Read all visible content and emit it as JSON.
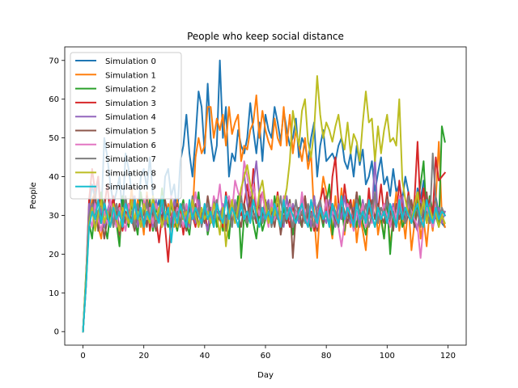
{
  "chart_data": {
    "type": "line",
    "title": "People who keep social distance",
    "xlabel": "Day",
    "ylabel": "People",
    "xlim": [
      -6,
      126
    ],
    "ylim": [
      -3.5,
      73.5
    ],
    "xticks": [
      0,
      20,
      40,
      60,
      80,
      100,
      120
    ],
    "yticks": [
      0,
      10,
      20,
      30,
      40,
      50,
      60,
      70
    ],
    "grid": false,
    "legend_position": "top-left",
    "x_start": 0,
    "x_step": 1,
    "series": [
      {
        "name": "Simulation 0",
        "color": "#1f77b4",
        "values": [
          0,
          12,
          32,
          38,
          34,
          40,
          30,
          50,
          45,
          38,
          33,
          36,
          40,
          30,
          46,
          42,
          36,
          33,
          28,
          40,
          42,
          37,
          45,
          35,
          31,
          34,
          28,
          40,
          42,
          35,
          38,
          30,
          44,
          48,
          56,
          46,
          40,
          50,
          62,
          58,
          46,
          64,
          50,
          44,
          48,
          70,
          50,
          58,
          40,
          46,
          44,
          52,
          48,
          46,
          50,
          59,
          52,
          46,
          54,
          44,
          56,
          52,
          50,
          58,
          54,
          49,
          57,
          52,
          48,
          50,
          55,
          45,
          50,
          48,
          44,
          50,
          54,
          40,
          48,
          52,
          44,
          45,
          46,
          44,
          48,
          50,
          44,
          42,
          46,
          40,
          48,
          43,
          47,
          38,
          40,
          44,
          36,
          41,
          45,
          38,
          40,
          35,
          42,
          36,
          38,
          34,
          40,
          36,
          31,
          30,
          37,
          34,
          39,
          32,
          34,
          29,
          35,
          30,
          28,
          27
        ]
      },
      {
        "name": "Simulation 1",
        "color": "#ff7f0e",
        "values": [
          0,
          13,
          30,
          34,
          36,
          27,
          24,
          33,
          29,
          31,
          27,
          33,
          24,
          31,
          28,
          30,
          37,
          28,
          34,
          31,
          25,
          36,
          29,
          33,
          27,
          31,
          35,
          28,
          33,
          30,
          27,
          34,
          29,
          31,
          28,
          33,
          30,
          45,
          50,
          46,
          48,
          58,
          58,
          50,
          55,
          52,
          56,
          48,
          58,
          51,
          54,
          56,
          44,
          48,
          47,
          52,
          54,
          61,
          50,
          57,
          52,
          49,
          47,
          55,
          50,
          48,
          58,
          48,
          56,
          46,
          52,
          48,
          44,
          50,
          42,
          46,
          30,
          19,
          33,
          40,
          36,
          29,
          24,
          35,
          28,
          37,
          25,
          32,
          27,
          34,
          23,
          30,
          26,
          21,
          32,
          28,
          35,
          25,
          30,
          24,
          33,
          22,
          29,
          36,
          26,
          31,
          24,
          33,
          21,
          28,
          35,
          24,
          29,
          22,
          31,
          26,
          34,
          49,
          30,
          27
        ]
      },
      {
        "name": "Simulation 2",
        "color": "#2ca02c",
        "values": [
          0,
          15,
          28,
          24,
          33,
          30,
          36,
          28,
          24,
          31,
          33,
          28,
          22,
          35,
          30,
          27,
          33,
          29,
          25,
          36,
          31,
          28,
          34,
          26,
          32,
          29,
          37,
          30,
          27,
          33,
          29,
          26,
          31,
          34,
          28,
          25,
          33,
          30,
          36,
          28,
          32,
          25,
          29,
          34,
          27,
          31,
          26,
          30,
          24,
          33,
          29,
          35,
          19,
          30,
          27,
          33,
          28,
          24,
          31,
          26,
          29,
          33,
          27,
          35,
          30,
          26,
          32,
          28,
          34,
          25,
          31,
          29,
          27,
          33,
          30,
          26,
          35,
          29,
          31,
          27,
          33,
          38,
          25,
          30,
          28,
          32,
          26,
          34,
          29,
          31,
          27,
          35,
          28,
          25,
          33,
          30,
          27,
          31,
          29,
          24,
          33,
          20,
          30,
          28,
          35,
          27,
          29,
          34,
          31,
          27,
          33,
          38,
          44,
          29,
          35,
          31,
          30,
          27,
          53,
          49
        ]
      },
      {
        "name": "Simulation 3",
        "color": "#d62728",
        "values": [
          0,
          14,
          34,
          42,
          36,
          40,
          28,
          32,
          38,
          30,
          35,
          28,
          33,
          26,
          31,
          29,
          34,
          27,
          32,
          30,
          28,
          35,
          26,
          31,
          29,
          23,
          30,
          27,
          18,
          29,
          33,
          27,
          31,
          25,
          32,
          28,
          30,
          27,
          34,
          29,
          31,
          26,
          32,
          28,
          33,
          29,
          27,
          36,
          30,
          34,
          28,
          32,
          30,
          33,
          38,
          31,
          42,
          28,
          34,
          36,
          31,
          28,
          33,
          30,
          36,
          29,
          34,
          31,
          27,
          33,
          28,
          32,
          30,
          35,
          27,
          31,
          26,
          29,
          34,
          37,
          31,
          28,
          40,
          45,
          33,
          29,
          38,
          32,
          34,
          28,
          36,
          30,
          33,
          27,
          37,
          29,
          35,
          31,
          38,
          30,
          36,
          28,
          33,
          27,
          39,
          32,
          30,
          36,
          29,
          34,
          49,
          31,
          37,
          28,
          34,
          30,
          45,
          39,
          40,
          41
        ]
      },
      {
        "name": "Simulation 4",
        "color": "#9467bd",
        "values": [
          0,
          14,
          33,
          30,
          35,
          28,
          32,
          27,
          31,
          34,
          29,
          33,
          26,
          30,
          28,
          32,
          29,
          35,
          27,
          31,
          28,
          33,
          30,
          27,
          34,
          29,
          32,
          27,
          31,
          28,
          34,
          30,
          28,
          33,
          29,
          27,
          31,
          28,
          34,
          30,
          29,
          26,
          32,
          28,
          31,
          30,
          33,
          28,
          32,
          27,
          34,
          30,
          36,
          41,
          33,
          29,
          38,
          44,
          35,
          29,
          32,
          34,
          28,
          33,
          30,
          31,
          27,
          35,
          29,
          33,
          31,
          28,
          34,
          30,
          32,
          27,
          35,
          29,
          33,
          30,
          28,
          34,
          31,
          27,
          33,
          29,
          35,
          30,
          28,
          32,
          31,
          27,
          34,
          29,
          33,
          30,
          45,
          28,
          32,
          30,
          34,
          29,
          33,
          27,
          31,
          35,
          29,
          33,
          30,
          28,
          26,
          34,
          31,
          29,
          33,
          27,
          30,
          32,
          28,
          31
        ]
      },
      {
        "name": "Simulation 5",
        "color": "#8c564b",
        "values": [
          0,
          12,
          28,
          32,
          36,
          26,
          30,
          24,
          29,
          33,
          27,
          31,
          25,
          30,
          28,
          33,
          29,
          26,
          32,
          28,
          31,
          27,
          33,
          30,
          26,
          32,
          28,
          34,
          29,
          27,
          31,
          33,
          28,
          30,
          26,
          32,
          29,
          33,
          27,
          31,
          28,
          35,
          30,
          27,
          33,
          29,
          31,
          26,
          34,
          28,
          32,
          30,
          27,
          33,
          29,
          36,
          31,
          28,
          32,
          30,
          34,
          29,
          31,
          27,
          33,
          25,
          30,
          28,
          34,
          19,
          30,
          32,
          27,
          35,
          29,
          33,
          30,
          26,
          32,
          28,
          35,
          30,
          33,
          29,
          27,
          34,
          31,
          28,
          33,
          30,
          36,
          29,
          32,
          27,
          31,
          34,
          29,
          33,
          30,
          28,
          35,
          31,
          26,
          33,
          29,
          32,
          28,
          30,
          34,
          27,
          31,
          33,
          29,
          36,
          28,
          30,
          32,
          29,
          31,
          30
        ]
      },
      {
        "name": "Simulation 6",
        "color": "#e377c2",
        "values": [
          0,
          12,
          30,
          27,
          33,
          29,
          26,
          31,
          28,
          34,
          30,
          27,
          32,
          29,
          26,
          33,
          30,
          28,
          31,
          27,
          34,
          29,
          32,
          28,
          33,
          30,
          27,
          31,
          29,
          35,
          28,
          32,
          30,
          27,
          33,
          29,
          31,
          36,
          30,
          28,
          33,
          31,
          29,
          35,
          32,
          38,
          30,
          33,
          35,
          31,
          39,
          36,
          34,
          44,
          40,
          35,
          38,
          33,
          30,
          36,
          31,
          27,
          34,
          29,
          32,
          28,
          35,
          30,
          33,
          27,
          31,
          29,
          36,
          30,
          28,
          33,
          30,
          27,
          32,
          29,
          34,
          28,
          31,
          30,
          27,
          22,
          28,
          33,
          30,
          26,
          31,
          29,
          33,
          27,
          30,
          28,
          34,
          31,
          29,
          33,
          30,
          27,
          32,
          29,
          35,
          30,
          28,
          33,
          31,
          29,
          27,
          19,
          28,
          32,
          30,
          27,
          33,
          29,
          31,
          30
        ]
      },
      {
        "name": "Simulation 7",
        "color": "#7f7f7f",
        "values": [
          0,
          13,
          30,
          33,
          27,
          31,
          28,
          34,
          29,
          32,
          27,
          33,
          30,
          28,
          35,
          29,
          31,
          27,
          33,
          30,
          28,
          34,
          29,
          32,
          27,
          31,
          33,
          30,
          28,
          34,
          29,
          31,
          27,
          33,
          30,
          28,
          35,
          29,
          32,
          27,
          31,
          33,
          28,
          30,
          34,
          29,
          32,
          28,
          31,
          27,
          33,
          29,
          35,
          30,
          28,
          32,
          29,
          31,
          34,
          28,
          30,
          33,
          27,
          31,
          29,
          35,
          28,
          32,
          30,
          27,
          34,
          29,
          31,
          28,
          33,
          30,
          27,
          32,
          34,
          29,
          30,
          28,
          33,
          31,
          27,
          35,
          29,
          32,
          30,
          28,
          34,
          31,
          29,
          33,
          27,
          30,
          36,
          28,
          32,
          30,
          34,
          29,
          31,
          27,
          33,
          30,
          28,
          35,
          29,
          32,
          31,
          27,
          33,
          30,
          28,
          46,
          34,
          29,
          32,
          30
        ]
      },
      {
        "name": "Simulation 8",
        "color": "#bcbd22",
        "values": [
          0,
          14,
          28,
          32,
          26,
          30,
          34,
          28,
          31,
          27,
          33,
          29,
          26,
          32,
          30,
          28,
          34,
          29,
          31,
          27,
          33,
          30,
          28,
          35,
          29,
          32,
          27,
          31,
          28,
          34,
          30,
          27,
          33,
          29,
          31,
          28,
          34,
          30,
          27,
          32,
          29,
          31,
          28,
          33,
          30,
          25,
          32,
          22,
          30,
          34,
          28,
          32,
          37,
          40,
          43,
          38,
          34,
          30,
          36,
          39,
          33,
          28,
          32,
          30,
          35,
          29,
          33,
          37,
          44,
          57,
          52,
          48,
          57,
          60,
          49,
          45,
          52,
          66,
          56,
          50,
          54,
          52,
          49,
          53,
          56,
          50,
          47,
          54,
          46,
          51,
          49,
          44,
          54,
          62,
          54,
          55,
          44,
          53,
          46,
          52,
          56,
          49,
          50,
          48,
          60,
          39,
          34,
          30,
          28,
          33,
          36,
          30,
          34,
          28,
          32,
          29,
          31,
          27,
          30,
          28
        ]
      },
      {
        "name": "Simulation 9",
        "color": "#17becf",
        "values": [
          0,
          12,
          27,
          31,
          29,
          34,
          28,
          33,
          30,
          27,
          32,
          29,
          31,
          27,
          33,
          30,
          28,
          34,
          29,
          32,
          27,
          31,
          29,
          33,
          30,
          28,
          35,
          29,
          32,
          23,
          31,
          28,
          33,
          30,
          27,
          34,
          29,
          32,
          30,
          28,
          33,
          29,
          31,
          27,
          33,
          30,
          28,
          35,
          29,
          32,
          30,
          27,
          33,
          29,
          31,
          28,
          34,
          30,
          27,
          32,
          29,
          31,
          28,
          33,
          30,
          27,
          34,
          29,
          32,
          30,
          28,
          31,
          33,
          29,
          27,
          34,
          30,
          28,
          32,
          29,
          31,
          27,
          33,
          30,
          28,
          35,
          29,
          32,
          30,
          27,
          33,
          29,
          31,
          28,
          34,
          30,
          27,
          32,
          29,
          31,
          28,
          33,
          30,
          27,
          34,
          29,
          32,
          30,
          28,
          31,
          33,
          29,
          27,
          34,
          30,
          28,
          32,
          29,
          31,
          30
        ]
      }
    ]
  }
}
